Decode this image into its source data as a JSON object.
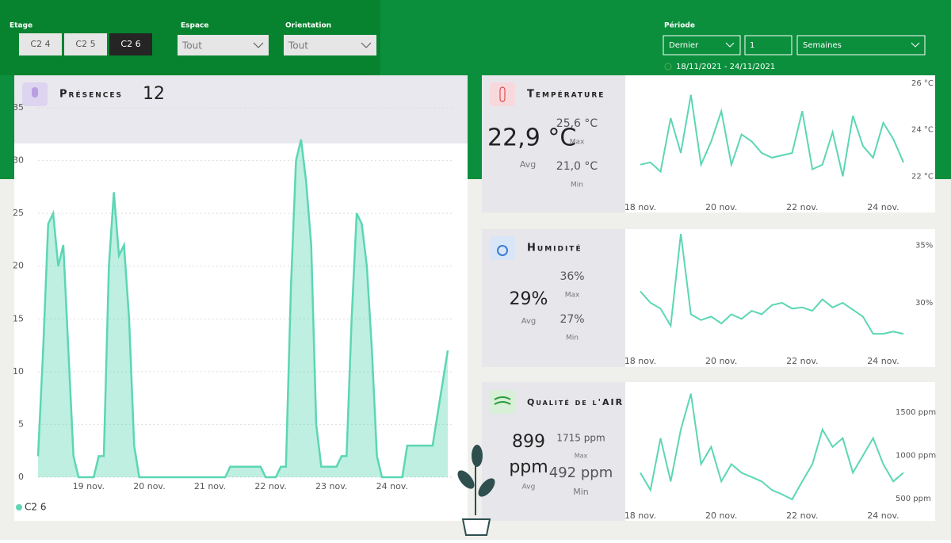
{
  "filters": {
    "floor": {
      "label": "Etage",
      "options": [
        "C2 4",
        "C2 5",
        "C2 6"
      ],
      "selected": 2
    },
    "space": {
      "label": "Espace",
      "value": "Tout"
    },
    "orientation": {
      "label": "Orientation",
      "value": "Tout"
    },
    "period": {
      "label": "Période",
      "mode": "Dernier",
      "count": "1",
      "unit": "Semaines",
      "range": "18/11/2021 - 24/11/2021"
    }
  },
  "cards": {
    "presences": {
      "title": "Présences",
      "count": 12
    },
    "temperature": {
      "title": "Température",
      "avg": "22,9 °C",
      "avg_label": "Avg",
      "max": "25,6 °C",
      "max_label": "Max",
      "min": "21,0 °C",
      "min_label": "Min"
    },
    "humidity": {
      "title": "Humidité",
      "avg": "29%",
      "avg_label": "Avg",
      "max": "36%",
      "max_label": "Max",
      "min": "27%",
      "min_label": "Min"
    },
    "air": {
      "title": "Qualité de l'AIR",
      "avg_value": "899",
      "avg_unit": "ppm",
      "avg_label": "Avg",
      "max": "1715 ppm",
      "max_label": "Max",
      "min": "492 ppm",
      "min_label": "Min"
    }
  },
  "chart_data": [
    {
      "type": "area",
      "legend": true,
      "categories": [
        null,
        null,
        null,
        null,
        null,
        null,
        null,
        null,
        null,
        null,
        "19 nov.",
        null,
        null,
        null,
        null,
        null,
        null,
        null,
        null,
        null,
        null,
        null,
        "20 nov.",
        null,
        null,
        null,
        null,
        null,
        null,
        null,
        null,
        null,
        null,
        null,
        "21 nov.",
        null,
        null,
        null,
        null,
        null,
        null,
        null,
        null,
        null,
        null,
        null,
        "22 nov.",
        null,
        null,
        null,
        null,
        null,
        null,
        null,
        null,
        null,
        null,
        null,
        "23 nov.",
        null,
        null,
        null,
        null,
        null,
        null,
        null,
        null,
        null,
        null,
        null,
        "24 nov.",
        null,
        null,
        null,
        null,
        null,
        null,
        null,
        null,
        null,
        null,
        null
      ],
      "series": [
        {
          "name": "C2 6",
          "color": "#5cd6b4",
          "values": [
            2,
            12,
            24,
            25,
            20,
            22,
            12,
            2,
            0,
            0,
            0,
            0,
            2,
            2,
            20,
            27,
            21,
            22,
            15,
            3,
            0,
            0,
            0,
            0,
            0,
            0,
            0,
            0,
            0,
            0,
            0,
            0,
            0,
            0,
            0,
            0,
            0,
            0,
            1,
            1,
            1,
            1,
            1,
            1,
            1,
            0,
            0,
            0,
            1,
            1,
            18,
            30,
            32,
            28,
            22,
            5,
            1,
            1,
            1,
            1,
            2,
            2,
            15,
            25,
            24,
            20,
            12,
            2,
            0,
            0,
            0,
            0,
            0,
            3,
            3,
            3,
            3,
            3,
            3,
            6,
            9,
            12
          ]
        }
      ],
      "ylim": [
        0,
        35
      ],
      "yticks": [
        0,
        5,
        10,
        15,
        20,
        25,
        30,
        35
      ],
      "grid": true
    },
    {
      "type": "line",
      "categories": [
        "18 nov.",
        null,
        null,
        null,
        null,
        null,
        null,
        null,
        "20 nov.",
        null,
        null,
        null,
        null,
        null,
        null,
        null,
        "22 nov.",
        null,
        null,
        null,
        null,
        null,
        null,
        null,
        "24 nov.",
        null,
        null
      ],
      "series": [
        {
          "name": "Température",
          "color": "#5cd6b4",
          "values": [
            22.5,
            22.6,
            22.2,
            24.5,
            23,
            25.5,
            22.5,
            23.5,
            24.8,
            22.5,
            23.8,
            23.5,
            23,
            22.8,
            22.9,
            23,
            24.8,
            22.3,
            22.5,
            23.9,
            22,
            24.6,
            23.3,
            22.8,
            24.3,
            23.6,
            22.6
          ]
        }
      ],
      "ylim": [
        21.4,
        26
      ],
      "yticks": [
        {
          "value": 22,
          "label": "22 °C"
        },
        {
          "value": 24,
          "label": "24 °C"
        },
        {
          "value": 26,
          "label": "26 °C"
        }
      ]
    },
    {
      "type": "line",
      "categories": [
        "18 nov.",
        null,
        null,
        null,
        null,
        null,
        null,
        null,
        "20 nov.",
        null,
        null,
        null,
        null,
        null,
        null,
        null,
        "22 nov.",
        null,
        null,
        null,
        null,
        null,
        null,
        null,
        "24 nov.",
        null,
        null
      ],
      "series": [
        {
          "name": "Humidité",
          "color": "#5cd6b4",
          "values": [
            31,
            30,
            29.5,
            28,
            36,
            29,
            28.5,
            28.8,
            28.2,
            29,
            28.6,
            29.3,
            29,
            29.8,
            30,
            29.5,
            29.6,
            29.3,
            30.3,
            29.6,
            30,
            29.4,
            28.8,
            27.3,
            27.3,
            27.5,
            27.3
          ]
        }
      ],
      "ylim": [
        26,
        36
      ],
      "yticks": [
        {
          "value": 30,
          "label": "30%"
        },
        {
          "value": 35,
          "label": "35%"
        }
      ]
    },
    {
      "type": "line",
      "categories": [
        "18 nov.",
        null,
        null,
        null,
        null,
        null,
        null,
        null,
        "20 nov.",
        null,
        null,
        null,
        null,
        null,
        null,
        null,
        "22 nov.",
        null,
        null,
        null,
        null,
        null,
        null,
        null,
        "24 nov.",
        null,
        null
      ],
      "series": [
        {
          "name": "Qualité de l'AIR",
          "color": "#5cd6b4",
          "values": [
            800,
            600,
            1200,
            700,
            1300,
            1715,
            900,
            1100,
            700,
            900,
            800,
            750,
            700,
            600,
            550,
            492,
            700,
            900,
            1300,
            1100,
            1200,
            800,
            1000,
            1200,
            900,
            700,
            800
          ]
        }
      ],
      "ylim": [
        400,
        1730
      ],
      "yticks": [
        {
          "value": 500,
          "label": "500 ppm"
        },
        {
          "value": 1000,
          "label": "1000 ppm"
        },
        {
          "value": 1500,
          "label": "1500 ppm"
        }
      ]
    }
  ]
}
